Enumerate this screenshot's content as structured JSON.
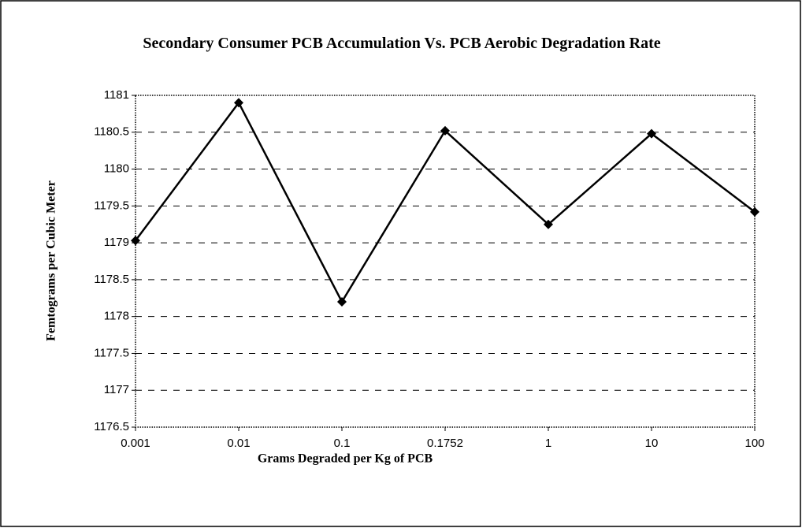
{
  "chart_data": {
    "type": "line",
    "title": "Secondary Consumer PCB Accumulation Vs. PCB Aerobic Degradation Rate",
    "x_label": "Grams Degraded per Kg of PCB",
    "y_label": "Femtograms per Cubic Meter",
    "categories": [
      "0.001",
      "0.01",
      "0.1",
      "0.1752",
      "1",
      "10",
      "100"
    ],
    "series": [
      {
        "name": "Secondary Consumer",
        "color": "#000000",
        "values": [
          1179.03,
          1180.9,
          1178.2,
          1180.52,
          1179.25,
          1180.48,
          1179.42
        ]
      }
    ],
    "ylim": [
      1176.5,
      1181
    ],
    "yticks": [
      1176.5,
      1177,
      1177.5,
      1178,
      1178.5,
      1179,
      1179.5,
      1180,
      1180.5,
      1181
    ],
    "grid": true
  }
}
